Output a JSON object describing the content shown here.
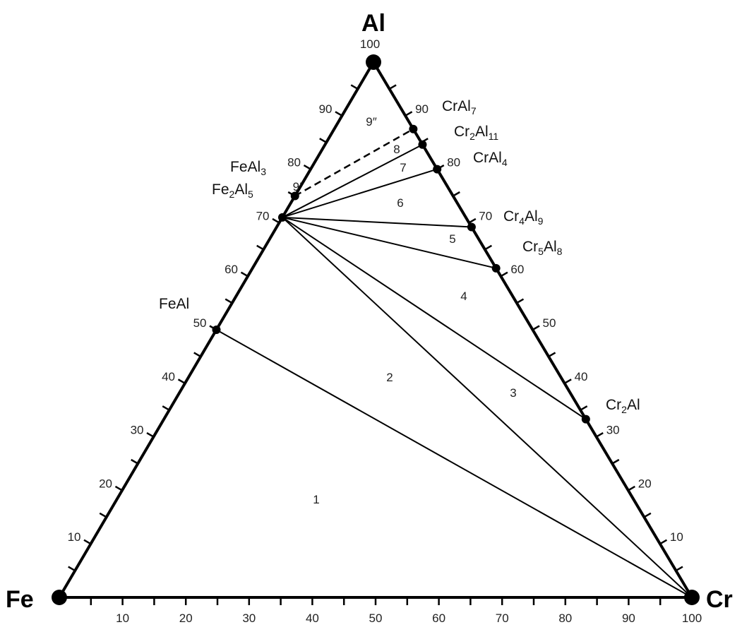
{
  "vertices": {
    "top": {
      "label": "Al",
      "value": "100"
    },
    "left": {
      "label": "Fe"
    },
    "right": {
      "label": "Cr"
    }
  },
  "scales": {
    "bottom": [
      "10",
      "20",
      "30",
      "40",
      "50",
      "60",
      "70",
      "80",
      "90",
      "100"
    ],
    "left": [
      "10",
      "20",
      "30",
      "40",
      "50",
      "60",
      "70",
      "80",
      "90"
    ],
    "right": [
      "10",
      "20",
      "30",
      "40",
      "50",
      "60",
      "70",
      "80",
      "90"
    ]
  },
  "phases": [
    {
      "id": "feal",
      "parts": [
        "FeAl"
      ]
    },
    {
      "id": "fe2al5",
      "parts": [
        "Fe",
        "2",
        "Al",
        "5"
      ]
    },
    {
      "id": "feal3",
      "parts": [
        "FeAl",
        "3"
      ]
    },
    {
      "id": "cral7",
      "parts": [
        "CrAl",
        "7"
      ]
    },
    {
      "id": "cr2al11",
      "parts": [
        "Cr",
        "2",
        "Al",
        "11"
      ]
    },
    {
      "id": "cral4",
      "parts": [
        "CrAl",
        "4"
      ]
    },
    {
      "id": "cr4al9",
      "parts": [
        "Cr",
        "4",
        "Al",
        "9"
      ]
    },
    {
      "id": "cr5al8",
      "parts": [
        "Cr",
        "5",
        "Al",
        "8"
      ]
    },
    {
      "id": "cr2al",
      "parts": [
        "Cr",
        "2",
        "Al"
      ]
    }
  ],
  "regions": [
    "1",
    "2",
    "3",
    "4",
    "5",
    "6",
    "7",
    "8",
    "9′",
    "9″"
  ],
  "chart_data": {
    "type": "ternary",
    "components": [
      "Fe",
      "Al",
      "Cr"
    ],
    "axis_ranges": {
      "Al": [
        0,
        100
      ],
      "Cr": [
        0,
        100
      ]
    },
    "compounds": [
      {
        "name": "FeAl",
        "al": 50,
        "cr": 0
      },
      {
        "name": "Fe2Al5",
        "al": 71,
        "cr": 0
      },
      {
        "name": "FeAl3",
        "al": 75,
        "cr": 0
      },
      {
        "name": "CrAl7",
        "al": 87.5,
        "cr": 12.5
      },
      {
        "name": "Cr2Al11",
        "al": 84.6,
        "cr": 15.4
      },
      {
        "name": "CrAl4",
        "al": 80,
        "cr": 20
      },
      {
        "name": "Cr4Al9",
        "al": 69.2,
        "cr": 30.8
      },
      {
        "name": "Cr5Al8",
        "al": 61.5,
        "cr": 38.5
      },
      {
        "name": "Cr2Al",
        "al": 33.3,
        "cr": 66.7
      }
    ],
    "tie_lines": [
      [
        "FeAl",
        "Cr"
      ],
      [
        "Fe2Al5",
        "Cr"
      ],
      [
        "Fe2Al5",
        "Cr2Al"
      ],
      [
        "Fe2Al5",
        "Cr5Al8"
      ],
      [
        "Fe2Al5",
        "Cr4Al9"
      ],
      [
        "Fe2Al5",
        "CrAl4"
      ],
      [
        "Fe2Al5",
        "Cr2Al11"
      ]
    ],
    "dashed_tie_lines": [
      [
        "FeAl3",
        "CrAl7"
      ]
    ]
  }
}
